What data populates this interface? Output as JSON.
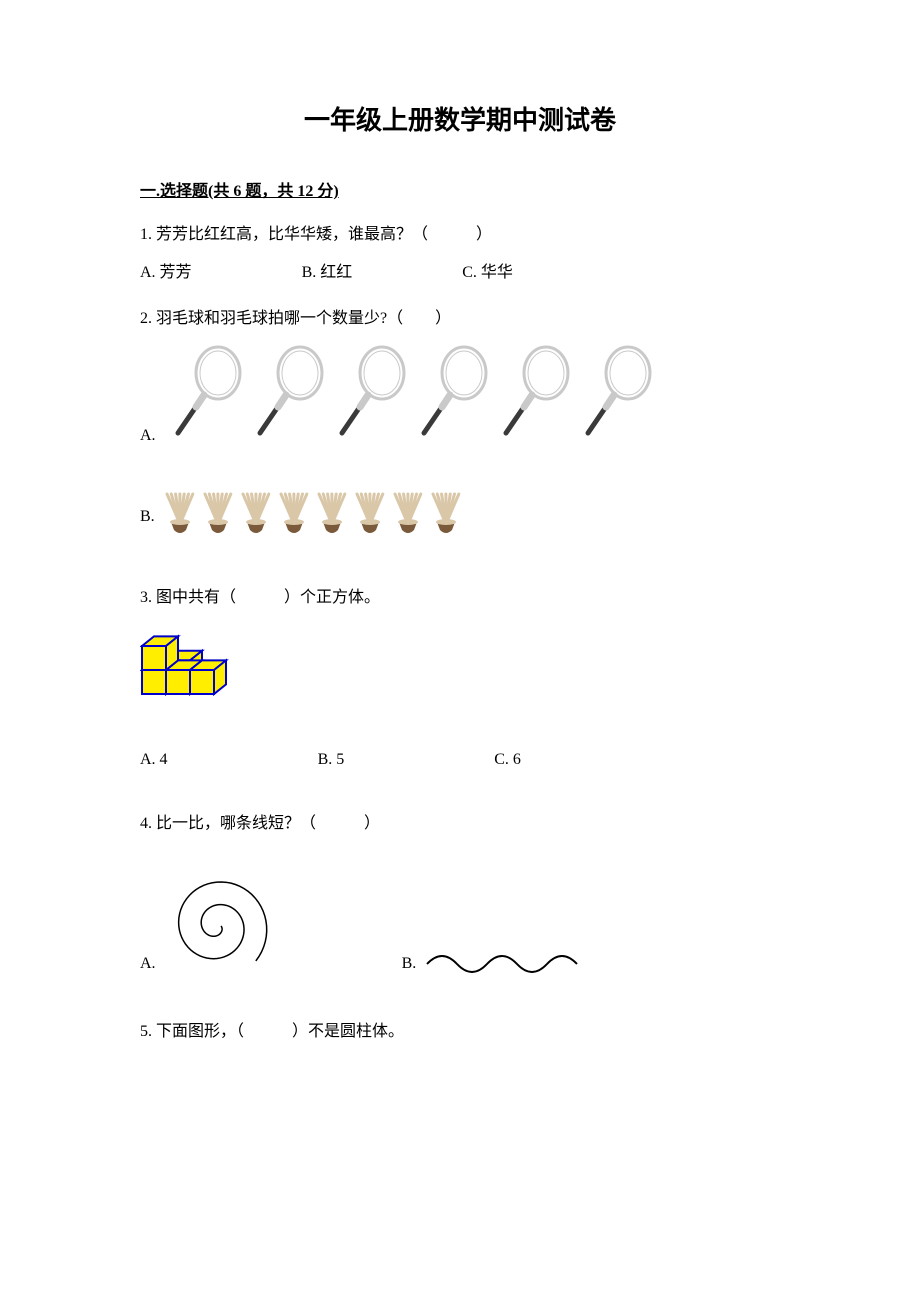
{
  "title": "一年级上册数学期中测试卷",
  "section1": {
    "header": "一.选择题(共 6 题，共 12 分)",
    "q1": {
      "text": "1. 芳芳比红红高，比华华矮，谁最高？（　　　）",
      "a": "A. 芳芳",
      "b": "B. 红红",
      "c": "C. 华华"
    },
    "q2": {
      "text": "2. 羽毛球和羽毛球拍哪一个数量少?（　　）",
      "a": "A.",
      "b": "B.",
      "rackets": 6,
      "shuttles": 8,
      "racket_handle_color": "#3a3a3a",
      "racket_head_stroke": "#c9c9c9",
      "shuttle_feather": "#d9c7a8",
      "shuttle_base": "#7a5a3a"
    },
    "q3": {
      "text": "3. 图中共有（　　　）个正方体。",
      "a": "A. 4",
      "b": "B. 5",
      "c": "C. 6",
      "cube_fill": "#ffee00",
      "cube_stroke": "#0000cc"
    },
    "q4": {
      "text": "4. 比一比，哪条线短？（　　　）",
      "a": "A.",
      "b": "B.",
      "stroke": "#000000"
    },
    "q5": {
      "text": "5. 下面图形，（　　　）不是圆柱体。"
    }
  }
}
